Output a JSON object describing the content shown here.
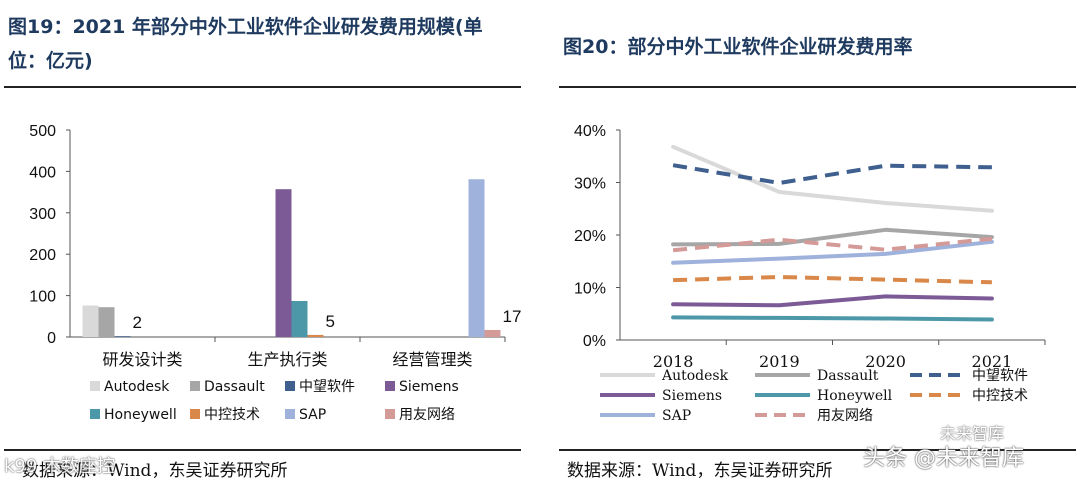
{
  "left_panel": {
    "title": "图19：2021 年部分中外工业软件企业研发费用规模(单位：亿元)",
    "source": "数据来源：Wind，东吴证券研究所"
  },
  "right_panel": {
    "title": "图20：部分中外工业软件企业研发费用率",
    "source": "数据来源：Wind，东吴证券研究所"
  },
  "watermarks": {
    "left": "k99 木数座控",
    "right": "头条 @未来智库",
    "right_small": "未来智库"
  },
  "colors": {
    "Autodesk": "#d9d9d9",
    "Dassault": "#a6a6a6",
    "中望软件": "#3f5f8f",
    "Siemens": "#7b5a96",
    "Honeywell": "#4d98a8",
    "中控技术": "#d9884a",
    "SAP": "#9fb2dc",
    "用友网络": "#d49a98"
  },
  "chart_data": [
    {
      "type": "bar",
      "title": "图19：2021 年部分中外工业软件企业研发费用规模(单位：亿元)",
      "categories": [
        "研发设计类",
        "生产执行类",
        "经营管理类"
      ],
      "ylim": [
        0,
        500
      ],
      "yticks": [
        "0",
        "100",
        "200",
        "300",
        "400",
        "500"
      ],
      "series": [
        {
          "name": "Autodesk",
          "values": [
            76,
            0,
            0
          ]
        },
        {
          "name": "Dassault",
          "values": [
            72,
            0,
            0
          ]
        },
        {
          "name": "中望软件",
          "values": [
            2,
            0,
            0
          ]
        },
        {
          "name": "Siemens",
          "values": [
            0,
            357,
            0
          ]
        },
        {
          "name": "Honeywell",
          "values": [
            0,
            87,
            0
          ]
        },
        {
          "name": "中控技术",
          "values": [
            0,
            5,
            0
          ]
        },
        {
          "name": "SAP",
          "values": [
            0,
            0,
            381
          ]
        },
        {
          "name": "用友网络",
          "values": [
            0,
            0,
            17
          ]
        }
      ],
      "data_labels": [
        {
          "series": "中望软件",
          "category": "研发设计类",
          "text": "2"
        },
        {
          "series": "中控技术",
          "category": "生产执行类",
          "text": "5"
        },
        {
          "series": "用友网络",
          "category": "经营管理类",
          "text": "17"
        }
      ],
      "legend": [
        "Autodesk",
        "Dassault",
        "中望软件",
        "Siemens",
        "Honeywell",
        "中控技术",
        "SAP",
        "用友网络"
      ],
      "legend_position": "bottom"
    },
    {
      "type": "line",
      "title": "图20：部分中外工业软件企业研发费用率",
      "x": [
        "2018",
        "2019",
        "2020",
        "2021"
      ],
      "ylim": [
        0,
        40
      ],
      "yticks": [
        "0%",
        "10%",
        "20%",
        "30%",
        "40%"
      ],
      "series": [
        {
          "name": "Autodesk",
          "values": [
            36.8,
            28.2,
            26.1,
            24.6
          ],
          "dash": false
        },
        {
          "name": "Dassault",
          "values": [
            18.2,
            18.3,
            21.0,
            19.6
          ],
          "dash": false
        },
        {
          "name": "中望软件",
          "values": [
            33.3,
            29.9,
            33.2,
            32.9
          ],
          "dash": true
        },
        {
          "name": "Siemens",
          "values": [
            6.8,
            6.6,
            8.3,
            7.9
          ],
          "dash": false
        },
        {
          "name": "Honeywell",
          "values": [
            4.3,
            4.2,
            4.1,
            3.9
          ],
          "dash": false
        },
        {
          "name": "中控技术",
          "values": [
            11.4,
            12.0,
            11.5,
            11.0
          ],
          "dash": true
        },
        {
          "name": "SAP",
          "values": [
            14.7,
            15.5,
            16.4,
            18.7
          ],
          "dash": false
        },
        {
          "name": "用友网络",
          "values": [
            17.1,
            19.1,
            17.2,
            19.3
          ],
          "dash": true
        }
      ],
      "legend": [
        "Autodesk",
        "Dassault",
        "中望软件",
        "Siemens",
        "Honeywell",
        "中控技术",
        "SAP",
        "用友网络"
      ],
      "legend_position": "bottom"
    }
  ]
}
